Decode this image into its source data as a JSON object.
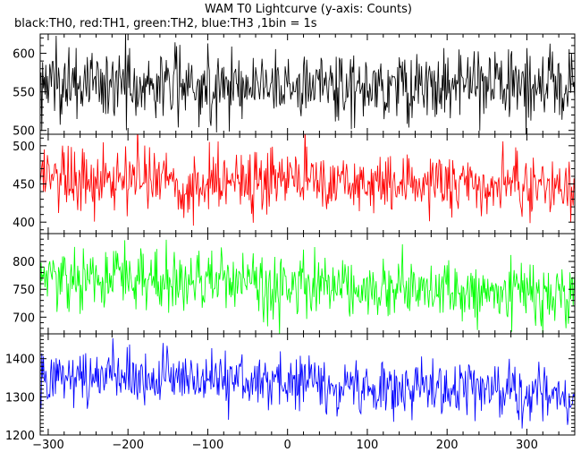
{
  "chart_data": {
    "type": "line",
    "title": "WAM T0 Lightcurve (y-axis: Counts)",
    "subtitle": "black:TH0, red:TH1, green:TH2, blue:TH3 ,1bin = 1s",
    "xlim": [
      -310,
      360
    ],
    "x_ticks": [
      -300,
      -200,
      -100,
      0,
      100,
      200,
      300
    ],
    "x_tick_labels": [
      "−300",
      "−200",
      "−100",
      "0",
      "100",
      "200",
      "300"
    ],
    "x_step": 1,
    "grid": false,
    "panels": [
      {
        "series": "TH0",
        "color": "#000000",
        "ylim": [
          495,
          625
        ],
        "y_ticks": [
          500,
          550,
          600
        ],
        "y_tick_labels": [
          "500",
          "550",
          "600"
        ],
        "profile": [
          {
            "x": -310,
            "mean": 560,
            "spread": 24
          },
          {
            "x": 360,
            "mean": 558,
            "spread": 24
          }
        ]
      },
      {
        "series": "TH1",
        "color": "#ff0000",
        "ylim": [
          385,
          515
        ],
        "y_ticks": [
          400,
          450,
          500
        ],
        "y_tick_labels": [
          "400",
          "450",
          "500"
        ],
        "profile": [
          {
            "x": -310,
            "mean": 460,
            "spread": 22
          },
          {
            "x": 100,
            "mean": 452,
            "spread": 21
          },
          {
            "x": 360,
            "mean": 445,
            "spread": 21
          }
        ]
      },
      {
        "series": "TH2",
        "color": "#00ff00",
        "ylim": [
          670,
          850
        ],
        "y_ticks": [
          700,
          750,
          800
        ],
        "y_tick_labels": [
          "700",
          "750",
          "800"
        ],
        "profile": [
          {
            "x": -310,
            "mean": 770,
            "spread": 28
          },
          {
            "x": 100,
            "mean": 755,
            "spread": 27
          },
          {
            "x": 360,
            "mean": 738,
            "spread": 27
          }
        ]
      },
      {
        "series": "TH3",
        "color": "#0000ff",
        "ylim": [
          1200,
          1465
        ],
        "y_ticks": [
          1200,
          1300,
          1400
        ],
        "y_tick_labels": [
          "1200",
          "1300",
          "1400"
        ],
        "profile": [
          {
            "x": -310,
            "mean": 1365,
            "spread": 36
          },
          {
            "x": 100,
            "mean": 1330,
            "spread": 36
          },
          {
            "x": 360,
            "mean": 1305,
            "spread": 36
          }
        ]
      }
    ]
  }
}
